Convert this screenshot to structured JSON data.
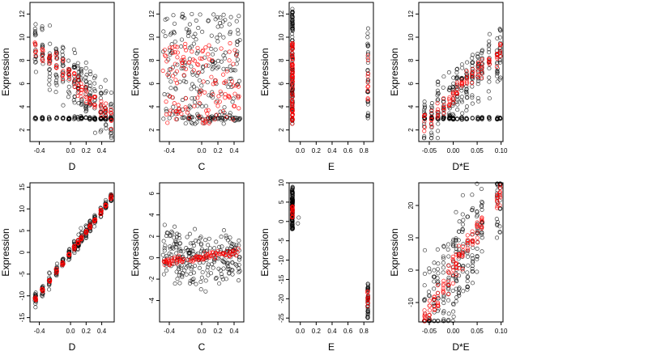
{
  "chart_data": [
    {
      "type": "scatter",
      "xlabel": "D",
      "ylabel": "Expression",
      "xlim": [
        -0.52,
        0.56
      ],
      "ylim": [
        1,
        13
      ],
      "xticks": [
        -0.4,
        0.0,
        0.2,
        0.4
      ],
      "xtick_labels": [
        "-0.4",
        "0.0",
        "0.2",
        "0.4"
      ],
      "yticks": [
        2,
        4,
        6,
        8,
        10,
        12
      ],
      "ytick_labels": [
        "2",
        "4",
        "6",
        "8",
        "10",
        "12"
      ],
      "gen": {
        "xvals": [
          -0.45,
          -0.36,
          -0.27,
          -0.18,
          -0.1,
          -0.02,
          0.05,
          0.1,
          0.14,
          0.2,
          0.25,
          0.31,
          0.39,
          0.45,
          0.52
        ],
        "pattern": "decreasing",
        "xjit": 0.015
      }
    },
    {
      "type": "scatter",
      "xlabel": "C",
      "ylabel": "Expression",
      "xlim": [
        -0.52,
        0.52
      ],
      "ylim": [
        1,
        13
      ],
      "xticks": [
        -0.4,
        0.0,
        0.2,
        0.4
      ],
      "xtick_labels": [
        "-0.4",
        "0.0",
        "0.2",
        "0.4"
      ],
      "yticks": [
        2,
        4,
        6,
        8,
        10,
        12
      ],
      "ytick_labels": [
        "2",
        "4",
        "6",
        "8",
        "10",
        "12"
      ],
      "gen": {
        "xrange": [
          -0.48,
          0.48
        ],
        "pattern": "flat"
      }
    },
    {
      "type": "scatter",
      "xlabel": "E",
      "ylabel": "Expression",
      "xlim": [
        -0.14,
        0.92
      ],
      "ylim": [
        1,
        13
      ],
      "xticks": [
        0.0,
        0.2,
        0.4,
        0.6,
        0.8
      ],
      "xtick_labels": [
        "0.0",
        "0.2",
        "0.4",
        "0.6",
        "0.8"
      ],
      "yticks": [
        2,
        4,
        6,
        8,
        10,
        12
      ],
      "ytick_labels": [
        "2",
        "4",
        "6",
        "8",
        "10",
        "12"
      ],
      "gen": {
        "xvals": [
          -0.1,
          0.85
        ],
        "pattern": "twogroup"
      }
    },
    {
      "type": "scatter",
      "xlabel": "D*E",
      "ylabel": "Expression",
      "xlim": [
        -0.072,
        0.104
      ],
      "ylim": [
        1,
        13
      ],
      "xticks": [
        -0.05,
        0.0,
        0.05,
        0.1
      ],
      "xtick_labels": [
        "-0.05",
        "0.00",
        "0.05",
        "0.10"
      ],
      "yticks": [
        2,
        4,
        6,
        8,
        10,
        12
      ],
      "ytick_labels": [
        "2",
        "4",
        "6",
        "8",
        "10",
        "12"
      ],
      "gen": {
        "xvals": [
          -0.06,
          -0.045,
          -0.032,
          -0.02,
          -0.008,
          0.0,
          0.008,
          0.018,
          0.028,
          0.04,
          0.052,
          0.06,
          0.075,
          0.092,
          0.098
        ],
        "pattern": "increasing",
        "xjit": 0.002
      }
    },
    {
      "type": "scatter",
      "xlabel": "D",
      "ylabel": "Expression",
      "xlim": [
        -0.52,
        0.56
      ],
      "ylim": [
        -16,
        16
      ],
      "xticks": [
        -0.4,
        0.0,
        0.2,
        0.4
      ],
      "xtick_labels": [
        "-0.4",
        "0.0",
        "0.2",
        "0.4"
      ],
      "yticks": [
        -15,
        -10,
        -5,
        0,
        5,
        10,
        15
      ],
      "ytick_labels": [
        "-15",
        "-10",
        "-5",
        "0",
        "5",
        "10",
        "15"
      ],
      "gen": {
        "xvals": [
          -0.45,
          -0.36,
          -0.27,
          -0.18,
          -0.1,
          -0.02,
          0.05,
          0.1,
          0.14,
          0.2,
          0.25,
          0.31,
          0.39,
          0.45,
          0.52
        ],
        "pattern": "linear",
        "slope": 24,
        "intercept": 0,
        "xjit": 0.015
      }
    },
    {
      "type": "scatter",
      "xlabel": "C",
      "ylabel": "Expression",
      "xlim": [
        -0.52,
        0.52
      ],
      "ylim": [
        -6,
        7
      ],
      "xticks": [
        -0.4,
        0.0,
        0.2,
        0.4
      ],
      "xtick_labels": [
        "-0.4",
        "0.0",
        "0.2",
        "0.4"
      ],
      "yticks": [
        -4,
        -2,
        0,
        2,
        4,
        6
      ],
      "ytick_labels": [
        "-4",
        "-2",
        "0",
        "2",
        "4",
        "6"
      ],
      "gen": {
        "xrange": [
          -0.48,
          0.48
        ],
        "pattern": "flatzero"
      }
    },
    {
      "type": "scatter",
      "xlabel": "E",
      "ylabel": "Expression",
      "xlim": [
        -0.14,
        0.92
      ],
      "ylim": [
        -26,
        10
      ],
      "xticks": [
        0.0,
        0.2,
        0.4,
        0.6,
        0.8
      ],
      "xtick_labels": [
        "0.0",
        "0.2",
        "0.4",
        "0.6",
        "0.8"
      ],
      "yticks": [
        -25,
        -20,
        -15,
        -10,
        -5,
        0,
        5,
        10
      ],
      "ytick_labels": [
        "-25",
        "-20",
        "-15",
        "-10",
        "-5",
        "0",
        "5",
        "10"
      ],
      "gen": {
        "xvals": [
          -0.1,
          0.85
        ],
        "pattern": "twogroupneg"
      }
    },
    {
      "type": "scatter",
      "xlabel": "D*E",
      "ylabel": "Expression",
      "xlim": [
        -0.072,
        0.104
      ],
      "ylim": [
        -16,
        27
      ],
      "xticks": [
        -0.05,
        0.0,
        0.05,
        0.1
      ],
      "xtick_labels": [
        "-0.05",
        "0.00",
        "0.05",
        "0.10"
      ],
      "yticks": [
        -10,
        0,
        10,
        20
      ],
      "ytick_labels": [
        "-10",
        "0",
        "10",
        "20"
      ],
      "gen": {
        "xvals": [
          -0.06,
          -0.05,
          -0.04,
          -0.032,
          -0.02,
          -0.01,
          0.0,
          0.006,
          0.012,
          0.02,
          0.03,
          0.04,
          0.05,
          0.06,
          0.092,
          0.098
        ],
        "pattern": "linear",
        "slope": 240,
        "intercept": 0,
        "xjit": 0.002
      }
    }
  ],
  "colors": {
    "observed": "#000000",
    "fitted": "#ff0000",
    "frame": "#000000",
    "background": "#ffffff"
  }
}
